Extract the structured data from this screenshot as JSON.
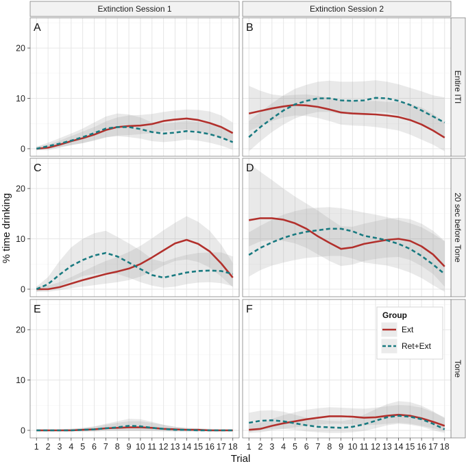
{
  "chart_data": {
    "type": "line",
    "ylabel": "% time drinking",
    "xlabel": "Trial",
    "x": [
      1,
      2,
      3,
      4,
      5,
      6,
      7,
      8,
      9,
      10,
      11,
      12,
      13,
      14,
      15,
      16,
      17,
      18
    ],
    "ylim": [
      -1.5,
      26
    ],
    "yticks": [
      0,
      10,
      20
    ],
    "columns": [
      "Extinction Session 1",
      "Extinction Session 2"
    ],
    "rows": [
      "Entire ITI",
      "20 sec before Tone",
      "Tone"
    ],
    "legend": {
      "title": "Group",
      "entries": [
        {
          "name": "Ext",
          "color": "#b2302c",
          "dash": "solid"
        },
        {
          "name": "Ret+Ext",
          "color": "#197a80",
          "dash": "dashed"
        }
      ]
    },
    "panels": [
      {
        "letter": "A",
        "column": 0,
        "row": 0,
        "series": [
          {
            "name": "Ext",
            "values": [
              0,
              0.2,
              0.8,
              1.5,
              2.1,
              2.8,
              3.7,
              4.3,
              4.5,
              4.6,
              4.9,
              5.5,
              5.8,
              6.0,
              5.7,
              5.1,
              4.3,
              3.1
            ],
            "ci_low": [
              -0.3,
              -0.3,
              0.2,
              0.7,
              1.1,
              1.6,
              2.2,
              2.6,
              2.7,
              2.9,
              3.1,
              3.5,
              3.7,
              3.8,
              3.5,
              2.9,
              2.2,
              1.2
            ],
            "ci_high": [
              0.4,
              0.8,
              1.6,
              2.5,
              3.4,
              4.3,
              5.4,
              6.2,
              6.6,
              6.7,
              6.9,
              7.3,
              7.6,
              7.8,
              7.7,
              7.4,
              6.6,
              5.2
            ]
          },
          {
            "name": "Ret+Ext",
            "values": [
              0,
              0.5,
              1.0,
              1.6,
              2.3,
              3.1,
              4.0,
              4.3,
              4.3,
              3.9,
              3.3,
              3.0,
              3.2,
              3.5,
              3.3,
              2.9,
              2.2,
              1.3
            ],
            "ci_low": [
              -0.3,
              0,
              0.3,
              0.7,
              1.1,
              1.7,
              2.3,
              2.5,
              2.3,
              2.0,
              1.5,
              1.3,
              1.5,
              1.8,
              1.6,
              1.2,
              0.6,
              -0.2
            ],
            "ci_high": [
              0.4,
              1.2,
              2.1,
              3.0,
              4.0,
              5.2,
              6.4,
              7.0,
              6.8,
              6.2,
              5.2,
              5.0,
              5.2,
              5.5,
              5.3,
              5.0,
              4.3,
              3.3
            ]
          }
        ]
      },
      {
        "letter": "B",
        "column": 1,
        "row": 0,
        "series": [
          {
            "name": "Ext",
            "values": [
              7.0,
              7.5,
              8.0,
              8.4,
              8.7,
              8.6,
              8.3,
              7.8,
              7.2,
              7.0,
              6.9,
              6.8,
              6.6,
              6.3,
              5.7,
              4.8,
              3.6,
              2.2
            ],
            "ci_low": [
              3.5,
              4.5,
              5.5,
              6.2,
              6.6,
              6.5,
              6.1,
              5.5,
              4.8,
              4.6,
              4.5,
              4.3,
              4.0,
              3.6,
              2.8,
              1.8,
              0.8,
              -0.5
            ],
            "ci_high": [
              12.5,
              11.5,
              10.8,
              10.5,
              10.7,
              10.8,
              10.5,
              10.1,
              9.7,
              9.5,
              9.4,
              9.5,
              9.3,
              9.3,
              8.9,
              8.2,
              6.9,
              5.2
            ]
          },
          {
            "name": "Ret+Ext",
            "values": [
              2.3,
              4.3,
              6.0,
              7.6,
              8.8,
              9.5,
              10.0,
              10.0,
              9.6,
              9.5,
              9.6,
              10.1,
              10.0,
              9.5,
              8.7,
              7.6,
              6.4,
              5.2
            ],
            "ci_low": [
              -0.5,
              1.5,
              3.3,
              4.8,
              6.0,
              6.8,
              7.3,
              7.3,
              6.9,
              6.8,
              6.9,
              7.3,
              7.2,
              6.7,
              5.9,
              4.8,
              3.5,
              2.2
            ],
            "ci_high": [
              5.5,
              7.3,
              9.0,
              10.6,
              11.9,
              12.7,
              13.3,
              13.5,
              13.3,
              13.3,
              13.4,
              13.6,
              13.3,
              12.8,
              12.1,
              11.4,
              10.6,
              10.2
            ]
          }
        ]
      },
      {
        "letter": "C",
        "column": 0,
        "row": 1,
        "series": [
          {
            "name": "Ext",
            "values": [
              0,
              0,
              0.4,
              1.1,
              1.8,
              2.4,
              3.0,
              3.5,
              4.1,
              5.0,
              6.3,
              7.7,
              9.1,
              9.8,
              9.0,
              7.5,
              5.1,
              2.3
            ],
            "ci_low": [
              -0.5,
              -0.5,
              -0.2,
              0.2,
              0.5,
              0.8,
              1.1,
              1.4,
              1.8,
              2.5,
              3.5,
              4.7,
              5.6,
              5.9,
              5.4,
              4.3,
              2.5,
              0.4
            ],
            "ci_high": [
              0.5,
              0.7,
              1.4,
              2.4,
              3.5,
              4.6,
              5.6,
              6.4,
              7.4,
              8.6,
              10.1,
              11.7,
              13.2,
              14.5,
              13.4,
              11.6,
              8.8,
              5.2
            ]
          },
          {
            "name": "Ret+Ext",
            "values": [
              0,
              1.0,
              2.9,
              4.6,
              5.8,
              6.7,
              7.2,
              6.5,
              5.3,
              4.0,
              2.8,
              2.3,
              2.8,
              3.3,
              3.6,
              3.7,
              3.6,
              3.0
            ],
            "ci_low": [
              -0.5,
              0,
              0.6,
              1.6,
              2.6,
              3.0,
              3.3,
              3.0,
              2.3,
              1.4,
              0.7,
              0.3,
              0.5,
              1.0,
              1.3,
              1.4,
              1.2,
              0.6
            ],
            "ci_high": [
              0.5,
              2.4,
              5.6,
              8.3,
              10.0,
              11.1,
              11.6,
              10.4,
              9.1,
              7.7,
              6.0,
              5.4,
              6.2,
              6.8,
              7.2,
              7.3,
              7.3,
              6.5
            ]
          }
        ]
      },
      {
        "letter": "D",
        "column": 1,
        "row": 1,
        "series": [
          {
            "name": "Ext",
            "values": [
              13.7,
              14.1,
              14.1,
              13.8,
              13.1,
              12.0,
              10.5,
              9.2,
              8.0,
              8.3,
              9.0,
              9.4,
              9.8,
              10.0,
              9.6,
              8.5,
              6.9,
              4.5
            ],
            "ci_low": [
              8.5,
              9.5,
              9.8,
              9.6,
              9.1,
              8.2,
              6.9,
              5.6,
              4.6,
              4.9,
              5.6,
              6.0,
              6.3,
              6.4,
              5.8,
              4.6,
              3.0,
              0.5
            ],
            "ci_high": [
              25,
              23.3,
              21.7,
              20.0,
              18.4,
              17.0,
              15.6,
              14.0,
              12.5,
              12.4,
              13.0,
              13.5,
              14.0,
              14.2,
              13.9,
              13.0,
              11.6,
              9.6
            ]
          },
          {
            "name": "Ret+Ext",
            "values": [
              6.8,
              8.2,
              9.3,
              10.2,
              10.9,
              11.4,
              11.7,
              12.0,
              12.0,
              11.5,
              10.6,
              10.2,
              9.7,
              9.0,
              8.0,
              6.6,
              4.9,
              3.0
            ],
            "ci_low": [
              2.5,
              3.8,
              4.7,
              5.3,
              5.8,
              6.2,
              6.4,
              6.6,
              6.6,
              6.1,
              5.3,
              5.0,
              4.7,
              4.1,
              3.3,
              2.2,
              0.8,
              -0.5
            ],
            "ci_high": [
              11.3,
              12.6,
              13.8,
              14.8,
              15.5,
              16.0,
              16.2,
              16.3,
              16.1,
              15.7,
              15.2,
              14.8,
              14.3,
              13.7,
              13.1,
              12.3,
              11.0,
              9.5
            ]
          }
        ]
      },
      {
        "letter": "E",
        "column": 0,
        "row": 2,
        "series": [
          {
            "name": "Ext",
            "values": [
              0,
              0,
              0,
              0,
              0.1,
              0.2,
              0.4,
              0.5,
              0.6,
              0.6,
              0.5,
              0.3,
              0.2,
              0.1,
              0.1,
              0,
              0,
              0
            ],
            "ci_low": [
              -0.2,
              -0.2,
              -0.2,
              -0.2,
              -0.2,
              -0.2,
              -0.1,
              -0.1,
              -0.1,
              -0.1,
              -0.1,
              -0.1,
              -0.2,
              -0.2,
              -0.2,
              -0.2,
              -0.2,
              -0.2
            ],
            "ci_high": [
              0.2,
              0.2,
              0.2,
              0.3,
              0.4,
              0.7,
              1.1,
              1.5,
              1.8,
              1.8,
              1.5,
              1.1,
              0.7,
              0.5,
              0.4,
              0.3,
              0.2,
              0.2
            ]
          },
          {
            "name": "Ret+Ext",
            "values": [
              0,
              0,
              0,
              0,
              0.1,
              0.2,
              0.4,
              0.6,
              0.9,
              0.8,
              0.5,
              0.3,
              0.1,
              0.1,
              0,
              0,
              0,
              0
            ],
            "ci_low": [
              -0.2,
              -0.2,
              -0.2,
              -0.2,
              -0.2,
              -0.2,
              -0.1,
              -0.1,
              -0.1,
              -0.1,
              -0.1,
              -0.2,
              -0.2,
              -0.2,
              -0.2,
              -0.2,
              -0.2,
              -0.2
            ],
            "ci_high": [
              0.2,
              0.2,
              0.2,
              0.3,
              0.5,
              0.8,
              1.3,
              1.8,
              2.3,
              2.2,
              1.7,
              1.1,
              0.7,
              0.4,
              0.3,
              0.2,
              0.2,
              0.2
            ]
          }
        ]
      },
      {
        "letter": "F",
        "column": 1,
        "row": 2,
        "series": [
          {
            "name": "Ext",
            "values": [
              0.1,
              0.3,
              0.9,
              1.4,
              1.8,
              2.2,
              2.5,
              2.8,
              2.8,
              2.7,
              2.5,
              2.6,
              2.9,
              3.1,
              2.9,
              2.4,
              1.7,
              0.9
            ],
            "ci_low": [
              -0.5,
              -0.4,
              0,
              0.3,
              0.6,
              0.9,
              1.1,
              1.3,
              1.3,
              1.2,
              1.0,
              1.1,
              1.3,
              1.5,
              1.3,
              0.9,
              0.4,
              -0.2
            ],
            "ci_high": [
              1.2,
              1.5,
              2.3,
              3.0,
              3.6,
              4.1,
              4.4,
              4.6,
              4.5,
              4.4,
              4.3,
              4.5,
              4.8,
              5.0,
              4.9,
              4.5,
              3.6,
              2.6
            ]
          },
          {
            "name": "Ret+Ext",
            "values": [
              1.5,
              1.9,
              2.0,
              1.8,
              1.4,
              1.0,
              0.7,
              0.6,
              0.5,
              0.7,
              1.2,
              1.9,
              2.6,
              2.9,
              2.7,
              2.2,
              1.3,
              0.2
            ],
            "ci_low": [
              -0.3,
              0.1,
              0.3,
              0.3,
              0.1,
              -0.2,
              -0.4,
              -0.5,
              -0.5,
              -0.4,
              -0.1,
              0.4,
              1.0,
              1.3,
              1.1,
              0.7,
              0,
              -0.5
            ],
            "ci_high": [
              3.5,
              3.9,
              4.0,
              3.7,
              3.1,
              2.5,
              2.1,
              1.9,
              1.8,
              2.2,
              3.1,
              4.2,
              5.2,
              5.8,
              5.6,
              4.9,
              3.8,
              2.4
            ]
          }
        ]
      }
    ]
  }
}
